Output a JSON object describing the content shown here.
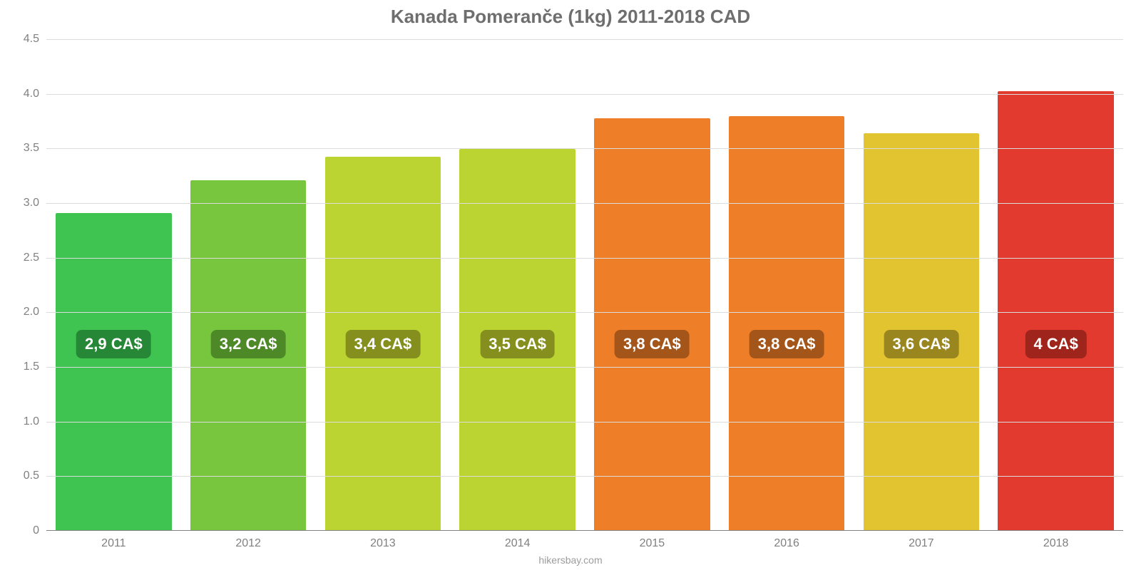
{
  "chart": {
    "type": "bar",
    "title": "Kanada Pomeranče (1kg) 2011-2018 CAD",
    "title_fontsize": 26,
    "title_color": "#6e6e6e",
    "source": "hikersbay.com",
    "source_fontsize": 14,
    "source_color": "#9c9c9c",
    "background_color": "#ffffff",
    "grid_color": "#dcdcdc",
    "axis_color": "#808080",
    "tick_color": "#808080",
    "tick_fontsize": 16,
    "ylim": [
      0,
      4.5
    ],
    "ytick_step": 0.5,
    "yticks": [
      "0",
      "0.5",
      "1.0",
      "1.5",
      "2.0",
      "2.5",
      "3.0",
      "3.5",
      "4.0",
      "4.5"
    ],
    "ytick_values": [
      0,
      0.5,
      1.0,
      1.5,
      2.0,
      2.5,
      3.0,
      3.5,
      4.0,
      4.5
    ],
    "categories": [
      "2011",
      "2012",
      "2013",
      "2014",
      "2015",
      "2016",
      "2017",
      "2018"
    ],
    "values": [
      2.9,
      3.2,
      3.42,
      3.49,
      3.77,
      3.79,
      3.63,
      4.02
    ],
    "value_labels": [
      "2,9 CA$",
      "3,2 CA$",
      "3,4 CA$",
      "3,5 CA$",
      "3,8 CA$",
      "3,8 CA$",
      "3,6 CA$",
      "4 CA$"
    ],
    "bar_colors": [
      "#3fc351",
      "#77c63e",
      "#bcd431",
      "#bcd431",
      "#ef7e28",
      "#ef7e28",
      "#e1c430",
      "#e33a2f"
    ],
    "badge_colors": [
      "#268736",
      "#4e8927",
      "#848f1e",
      "#848f1e",
      "#a3551a",
      "#a3551a",
      "#9a861e",
      "#9f241c"
    ],
    "badge_fontsize": 22,
    "badge_center_value": 1.7,
    "bar_width_pct": 86
  }
}
